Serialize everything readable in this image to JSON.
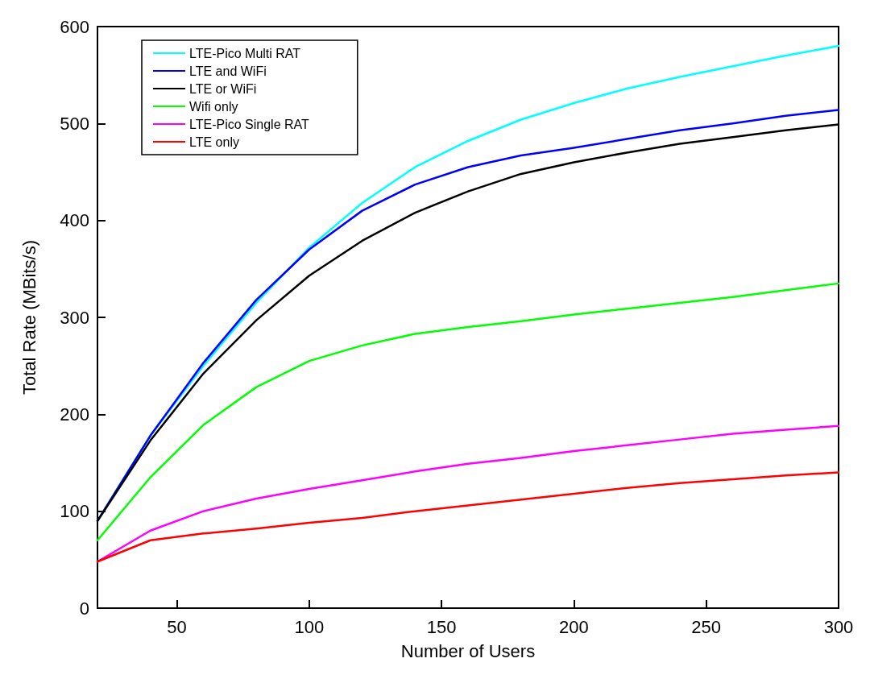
{
  "chart_data": {
    "type": "line",
    "xlabel": "Number of Users",
    "ylabel": "Total Rate (MBits/s)",
    "x": [
      20,
      40,
      60,
      80,
      100,
      120,
      140,
      160,
      180,
      200,
      220,
      240,
      260,
      280,
      300
    ],
    "xlim": [
      20,
      300
    ],
    "xticks": [
      50,
      100,
      150,
      200,
      250,
      300
    ],
    "ylim": [
      0,
      600
    ],
    "yticks": [
      0,
      100,
      200,
      300,
      400,
      500,
      600
    ],
    "grid": false,
    "legend": "top left",
    "marker": "none",
    "line_style": "solid",
    "series": [
      {
        "name": "LTE-Pico Multi RAT",
        "color": "#00ffff",
        "values": [
          90,
          178,
          250,
          315,
          372,
          418,
          455,
          482,
          504,
          521,
          536,
          548,
          559,
          570,
          580
        ]
      },
      {
        "name": "LTE and WiFi",
        "color": "#0000ff",
        "values": [
          90,
          178,
          253,
          318,
          370,
          410,
          437,
          455,
          467,
          475,
          484,
          493,
          500,
          508,
          514
        ]
      },
      {
        "name": "LTE or WiFi",
        "color": "#000000",
        "values": [
          90,
          173,
          242,
          297,
          343,
          379,
          408,
          430,
          448,
          460,
          470,
          479,
          486,
          493,
          499
        ]
      },
      {
        "name": "Wifi only",
        "color": "#00ff00",
        "values": [
          70,
          135,
          189,
          228,
          255,
          271,
          283,
          290,
          296,
          303,
          309,
          315,
          321,
          328,
          335
        ]
      },
      {
        "name": "LTE-Pico Single RAT",
        "color": "#ff00ff",
        "values": [
          48,
          80,
          100,
          113,
          123,
          132,
          141,
          149,
          155,
          162,
          168,
          174,
          180,
          184,
          188
        ]
      },
      {
        "name": "LTE only",
        "color": "#ff0000",
        "values": [
          48,
          70,
          77,
          82,
          88,
          93,
          100,
          106,
          112,
          118,
          124,
          129,
          133,
          137,
          140
        ]
      }
    ]
  }
}
